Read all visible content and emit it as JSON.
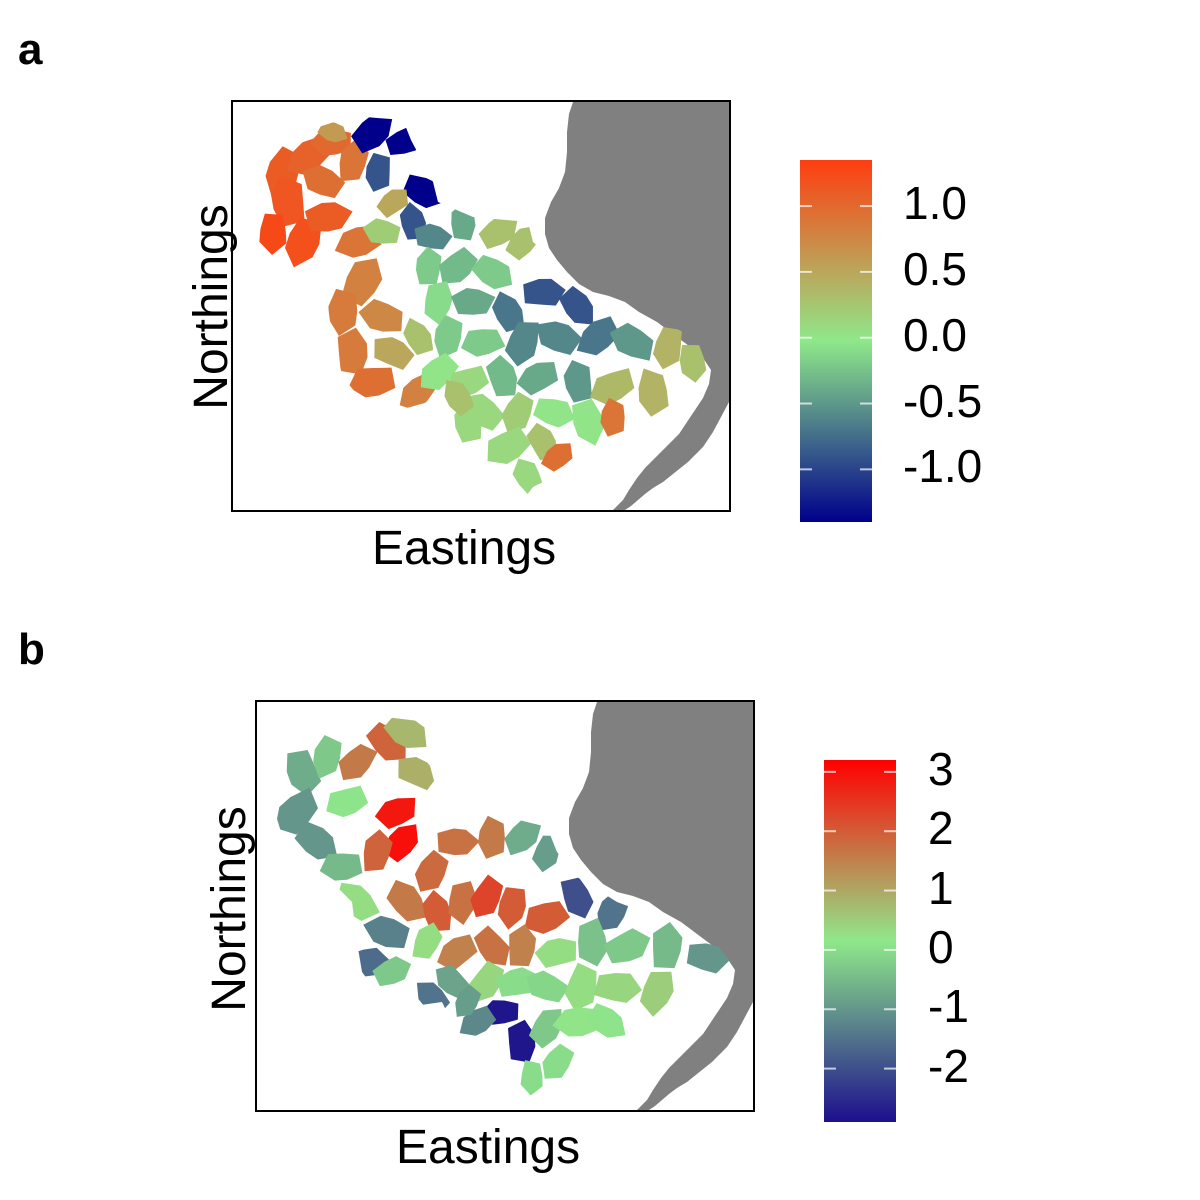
{
  "panels": [
    {
      "letter": "a",
      "xlabel": "Eastings",
      "ylabel": "Northings",
      "legend": {
        "ticks": [
          "1.0",
          "0.5",
          "0.0",
          "-0.5",
          "-1.0"
        ],
        "range": [
          -1.4,
          1.35
        ],
        "colors": [
          "#00008b",
          "#8fe88a",
          "#ff3d0f"
        ]
      }
    },
    {
      "letter": "b",
      "xlabel": "Eastings",
      "ylabel": "Northings",
      "legend": {
        "ticks": [
          "3",
          "2",
          "1",
          "0",
          "-1",
          "-2"
        ],
        "range": [
          -2.9,
          3.2
        ],
        "colors": [
          "#1c0f8c",
          "#8fe88a",
          "#ff0000"
        ]
      }
    }
  ],
  "colors": {
    "land": "#808080",
    "background": "#ffffff",
    "frame": "#000000"
  }
}
